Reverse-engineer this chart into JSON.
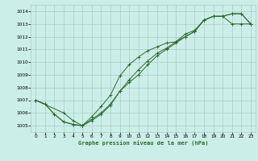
{
  "title": "Graphe pression niveau de la mer (hPa)",
  "background_color": "#cceee8",
  "grid_color": "#aaccc8",
  "line_color": "#2d6a2d",
  "xlim": [
    -0.5,
    23.5
  ],
  "ylim": [
    1004.5,
    1014.5
  ],
  "xticks": [
    0,
    1,
    2,
    3,
    4,
    5,
    6,
    7,
    8,
    9,
    10,
    11,
    12,
    13,
    14,
    15,
    16,
    17,
    18,
    19,
    20,
    21,
    22,
    23
  ],
  "yticks": [
    1005,
    1006,
    1007,
    1008,
    1009,
    1010,
    1011,
    1012,
    1013,
    1014
  ],
  "line1_x": [
    0,
    1,
    2,
    3,
    4,
    5,
    6,
    7,
    8,
    9,
    10,
    11,
    12,
    13,
    14,
    15,
    16,
    17,
    18,
    19,
    20,
    21,
    22,
    23
  ],
  "line1_y": [
    1007.0,
    1006.7,
    1005.9,
    1005.3,
    1005.1,
    1005.0,
    1005.4,
    1005.9,
    1006.6,
    1007.7,
    1008.4,
    1009.0,
    1009.8,
    1010.5,
    1011.0,
    1011.5,
    1012.0,
    1012.4,
    1013.3,
    1013.6,
    1013.6,
    1013.0,
    1013.0,
    1013.0
  ],
  "line2_x": [
    0,
    1,
    2,
    3,
    4,
    5,
    6,
    7,
    8,
    9,
    10,
    11,
    12,
    13,
    14,
    15,
    16,
    17,
    18,
    19,
    20,
    21,
    22,
    23
  ],
  "line2_y": [
    1007.0,
    1006.7,
    1005.9,
    1005.3,
    1005.1,
    1005.0,
    1005.7,
    1006.5,
    1007.4,
    1008.9,
    1009.8,
    1010.4,
    1010.9,
    1011.2,
    1011.5,
    1011.6,
    1012.0,
    1012.4,
    1013.3,
    1013.6,
    1013.6,
    1013.8,
    1013.8,
    1013.0
  ],
  "line3_x": [
    0,
    3,
    4,
    5,
    6,
    7,
    8,
    9,
    10,
    11,
    12,
    13,
    14,
    15,
    16,
    17,
    18,
    19,
    20,
    21,
    22,
    23
  ],
  "line3_y": [
    1007.0,
    1006.0,
    1005.4,
    1005.0,
    1005.5,
    1006.0,
    1006.7,
    1007.7,
    1008.6,
    1009.4,
    1010.1,
    1010.7,
    1011.1,
    1011.6,
    1012.2,
    1012.5,
    1013.3,
    1013.6,
    1013.6,
    1013.8,
    1013.8,
    1013.0
  ]
}
